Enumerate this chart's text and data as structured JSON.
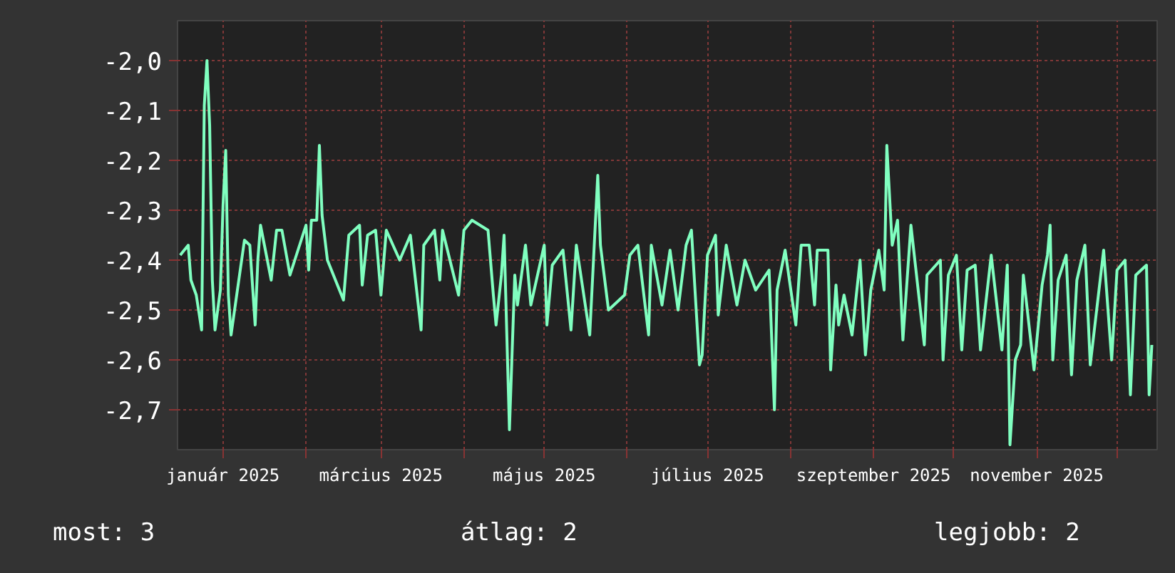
{
  "chart_data": {
    "type": "line",
    "grid": true,
    "xlim": [
      "2024-12-15",
      "2025-12-16"
    ],
    "xticks": [
      {
        "value": "2025-01-01",
        "label": "január 2025"
      },
      {
        "value": "2025-02-01",
        "label": null
      },
      {
        "value": "2025-03-01",
        "label": "március 2025"
      },
      {
        "value": "2025-04-01",
        "label": null
      },
      {
        "value": "2025-05-01",
        "label": "május 2025"
      },
      {
        "value": "2025-06-01",
        "label": null
      },
      {
        "value": "2025-07-01",
        "label": "július 2025"
      },
      {
        "value": "2025-08-01",
        "label": null
      },
      {
        "value": "2025-09-01",
        "label": "szeptember 2025"
      },
      {
        "value": "2025-10-01",
        "label": null
      },
      {
        "value": "2025-11-01",
        "label": "november 2025"
      },
      {
        "value": "2025-12-01",
        "label": null
      }
    ],
    "ylim": [
      -2.78,
      -1.92
    ],
    "yticks": [
      {
        "value": -2.0,
        "label": "-2,0"
      },
      {
        "value": -2.1,
        "label": "-2,1"
      },
      {
        "value": -2.2,
        "label": "-2,2"
      },
      {
        "value": -2.3,
        "label": "-2,3"
      },
      {
        "value": -2.4,
        "label": "-2,4"
      },
      {
        "value": -2.5,
        "label": "-2,5"
      },
      {
        "value": -2.6,
        "label": "-2,6"
      },
      {
        "value": -2.7,
        "label": "-2,7"
      }
    ],
    "annotations": [
      "most: 3",
      "átlag: 2",
      "legjobb: 2"
    ],
    "series": [
      {
        "color": "#80ffc0",
        "x": [
          "2024-12-16",
          "2024-12-19",
          "2024-12-20",
          "2024-12-22",
          "2024-12-24",
          "2024-12-25",
          "2024-12-26",
          "2024-12-27",
          "2024-12-28",
          "2024-12-29",
          "2024-12-31",
          "2025-01-01",
          "2025-01-02",
          "2025-01-03",
          "2025-01-04",
          "2025-01-09",
          "2025-01-11",
          "2025-01-13",
          "2025-01-14",
          "2025-01-15",
          "2025-01-19",
          "2025-01-21",
          "2025-01-23",
          "2025-01-26",
          "2025-02-01",
          "2025-02-02",
          "2025-02-03",
          "2025-02-05",
          "2025-02-06",
          "2025-02-07",
          "2025-02-09",
          "2025-02-15",
          "2025-02-17",
          "2025-02-21",
          "2025-02-22",
          "2025-02-24",
          "2025-02-27",
          "2025-03-01",
          "2025-03-03",
          "2025-03-08",
          "2025-03-12",
          "2025-03-16",
          "2025-03-17",
          "2025-03-21",
          "2025-03-23",
          "2025-03-24",
          "2025-03-30",
          "2025-04-01",
          "2025-04-04",
          "2025-04-10",
          "2025-04-12",
          "2025-04-13",
          "2025-04-15",
          "2025-04-16",
          "2025-04-18",
          "2025-04-20",
          "2025-04-21",
          "2025-04-24",
          "2025-04-26",
          "2025-05-01",
          "2025-05-02",
          "2025-05-04",
          "2025-05-08",
          "2025-05-11",
          "2025-05-13",
          "2025-05-18",
          "2025-05-21",
          "2025-05-22",
          "2025-05-25",
          "2025-05-31",
          "2025-06-02",
          "2025-06-05",
          "2025-06-09",
          "2025-06-10",
          "2025-06-14",
          "2025-06-17",
          "2025-06-20",
          "2025-06-23",
          "2025-06-25",
          "2025-06-28",
          "2025-06-29",
          "2025-07-01",
          "2025-07-04",
          "2025-07-05",
          "2025-07-08",
          "2025-07-12",
          "2025-07-15",
          "2025-07-19",
          "2025-07-24",
          "2025-07-26",
          "2025-07-27",
          "2025-07-30",
          "2025-08-03",
          "2025-08-05",
          "2025-08-08",
          "2025-08-10",
          "2025-08-11",
          "2025-08-15",
          "2025-08-16",
          "2025-08-18",
          "2025-08-19",
          "2025-08-21",
          "2025-08-24",
          "2025-08-27",
          "2025-08-29",
          "2025-08-31",
          "2025-09-03",
          "2025-09-05",
          "2025-09-06",
          "2025-09-08",
          "2025-09-10",
          "2025-09-12",
          "2025-09-15",
          "2025-09-20",
          "2025-09-21",
          "2025-09-26",
          "2025-09-27",
          "2025-09-29",
          "2025-10-02",
          "2025-10-04",
          "2025-10-06",
          "2025-10-09",
          "2025-10-11",
          "2025-10-15",
          "2025-10-19",
          "2025-10-21",
          "2025-10-22",
          "2025-10-24",
          "2025-10-26",
          "2025-10-27",
          "2025-10-31",
          "2025-11-03",
          "2025-11-05",
          "2025-11-06",
          "2025-11-07",
          "2025-11-09",
          "2025-11-12",
          "2025-11-14",
          "2025-11-16",
          "2025-11-19",
          "2025-11-21",
          "2025-11-26",
          "2025-11-29",
          "2025-12-01",
          "2025-12-04",
          "2025-12-06",
          "2025-12-08",
          "2025-12-12",
          "2025-12-13",
          "2025-12-14"
        ],
        "values": [
          -2.39,
          -2.37,
          -2.44,
          -2.47,
          -2.54,
          -2.09,
          -2.0,
          -2.13,
          -2.44,
          -2.54,
          -2.46,
          -2.29,
          -2.18,
          -2.47,
          -2.55,
          -2.36,
          -2.37,
          -2.53,
          -2.4,
          -2.33,
          -2.44,
          -2.34,
          -2.34,
          -2.43,
          -2.33,
          -2.42,
          -2.32,
          -2.32,
          -2.17,
          -2.31,
          -2.4,
          -2.48,
          -2.35,
          -2.33,
          -2.45,
          -2.35,
          -2.34,
          -2.47,
          -2.34,
          -2.4,
          -2.35,
          -2.54,
          -2.37,
          -2.34,
          -2.44,
          -2.34,
          -2.47,
          -2.34,
          -2.32,
          -2.34,
          -2.47,
          -2.53,
          -2.43,
          -2.35,
          -2.74,
          -2.43,
          -2.49,
          -2.37,
          -2.49,
          -2.37,
          -2.53,
          -2.41,
          -2.38,
          -2.54,
          -2.37,
          -2.55,
          -2.23,
          -2.37,
          -2.5,
          -2.47,
          -2.39,
          -2.37,
          -2.55,
          -2.37,
          -2.49,
          -2.38,
          -2.5,
          -2.37,
          -2.34,
          -2.61,
          -2.59,
          -2.39,
          -2.35,
          -2.51,
          -2.37,
          -2.49,
          -2.4,
          -2.46,
          -2.42,
          -2.7,
          -2.46,
          -2.38,
          -2.53,
          -2.37,
          -2.37,
          -2.49,
          -2.38,
          -2.38,
          -2.62,
          -2.45,
          -2.53,
          -2.47,
          -2.55,
          -2.4,
          -2.59,
          -2.46,
          -2.38,
          -2.46,
          -2.17,
          -2.37,
          -2.32,
          -2.56,
          -2.33,
          -2.57,
          -2.43,
          -2.4,
          -2.6,
          -2.43,
          -2.39,
          -2.58,
          -2.42,
          -2.41,
          -2.58,
          -2.39,
          -2.58,
          -2.41,
          -2.77,
          -2.6,
          -2.57,
          -2.43,
          -2.62,
          -2.45,
          -2.39,
          -2.33,
          -2.6,
          -2.44,
          -2.39,
          -2.63,
          -2.44,
          -2.37,
          -2.61,
          -2.38,
          -2.6,
          -2.42,
          -2.4,
          -2.67,
          -2.43,
          -2.41,
          -2.67,
          -2.57
        ]
      }
    ]
  }
}
